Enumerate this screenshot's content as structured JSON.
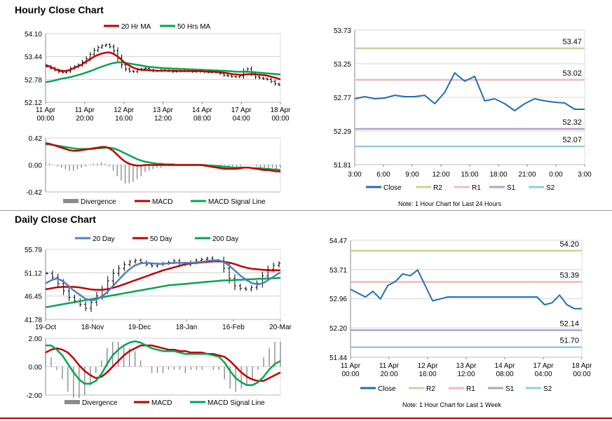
{
  "sections": {
    "hourly_title": "Hourly Close Chart",
    "daily_title": "Daily Close Chart",
    "hourly_note": "Note: 1 Hour Chart for Last 24 Hours",
    "daily_note": "Note: 1 Hour Chart for Last 1 Week"
  },
  "colors": {
    "red": "#c00000",
    "green": "#00a651",
    "blue": "#4f81bd",
    "grey": "#8c8c8c",
    "black": "#000000",
    "close": "#1f6fb2",
    "r2": "#c4d79b",
    "r1": "#f2b8b8",
    "s1": "#b2a1c7",
    "s2": "#92cddc"
  },
  "chart_data": [
    {
      "id": "hourly-price",
      "type": "line",
      "legend": [
        "20 Hr MA",
        "50 Hrs MA"
      ],
      "x_ticks": [
        "11 Apr\n00:00",
        "11 Apr\n20:00",
        "12 Apr\n16:00",
        "13 Apr\n12:00",
        "14 Apr\n08:00",
        "17 Apr\n04:00",
        "18 Apr\n00:00"
      ],
      "y_ticks": [
        "54.10",
        "53.44",
        "52.78",
        "52.12"
      ],
      "ylim": [
        52.12,
        54.1
      ],
      "series": [
        {
          "name": "Close",
          "values": [
            53.15,
            53.1,
            53.05,
            53.0,
            52.98,
            53.02,
            53.1,
            53.15,
            53.2,
            53.28,
            53.38,
            53.5,
            53.62,
            53.7,
            53.75,
            53.78,
            53.72,
            53.6,
            53.4,
            53.2,
            53.08,
            53.02,
            53.0,
            53.05,
            53.08,
            53.1,
            53.05,
            53.02,
            53.03,
            53.05,
            53.04,
            53.02,
            53.0,
            53.01,
            53.02,
            53.03,
            53.02,
            53.0,
            53.01,
            53.0,
            52.99,
            52.98,
            52.99,
            52.98,
            52.95,
            52.9,
            52.88,
            52.86,
            52.85,
            52.88,
            53.02,
            53.08,
            52.95,
            52.85,
            52.82,
            52.8,
            52.78,
            52.72,
            52.65,
            52.62
          ]
        },
        {
          "name": "20 Hr MA",
          "values": [
            53.2,
            53.15,
            53.1,
            53.05,
            53.03,
            53.02,
            53.05,
            53.1,
            53.15,
            53.2,
            53.28,
            53.35,
            53.42,
            53.48,
            53.52,
            53.55,
            53.56,
            53.52,
            53.45,
            53.35,
            53.25,
            53.18,
            53.12,
            53.08,
            53.06,
            53.05,
            53.05,
            53.04,
            53.03,
            53.03,
            53.03,
            53.03,
            53.03,
            53.03,
            53.02,
            53.02,
            53.02,
            53.02,
            53.02,
            53.02,
            53.01,
            53.0,
            53.0,
            52.99,
            52.98,
            52.97,
            52.95,
            52.93,
            52.92,
            52.91,
            52.92,
            52.93,
            52.93,
            52.92,
            52.91,
            52.9,
            52.88,
            52.85,
            52.82,
            52.78
          ]
        },
        {
          "name": "50 Hrs MA",
          "values": [
            52.7,
            52.72,
            52.74,
            52.77,
            52.8,
            52.82,
            52.84,
            52.87,
            52.9,
            52.93,
            52.97,
            53.01,
            53.05,
            53.1,
            53.14,
            53.18,
            53.22,
            53.25,
            53.27,
            53.27,
            53.26,
            53.24,
            53.22,
            53.2,
            53.18,
            53.16,
            53.14,
            53.13,
            53.12,
            53.11,
            53.1,
            53.1,
            53.09,
            53.09,
            53.08,
            53.08,
            53.07,
            53.07,
            53.06,
            53.06,
            53.05,
            53.05,
            53.04,
            53.04,
            53.03,
            53.03,
            53.02,
            53.01,
            53.0,
            53.0,
            53.0,
            53.0,
            52.99,
            52.98,
            52.97,
            52.96,
            52.95,
            52.94,
            52.93,
            52.92
          ]
        }
      ]
    },
    {
      "id": "hourly-macd",
      "type": "line",
      "legend": [
        "Divergence",
        "MACD",
        "MACD Signal Line"
      ],
      "y_ticks": [
        "0.42",
        "0.00",
        "-0.42"
      ],
      "ylim": [
        -0.42,
        0.42
      ],
      "series": [
        {
          "name": "MACD",
          "values": [
            0.34,
            0.33,
            0.31,
            0.29,
            0.27,
            0.25,
            0.23,
            0.22,
            0.22,
            0.23,
            0.24,
            0.25,
            0.26,
            0.27,
            0.28,
            0.28,
            0.26,
            0.22,
            0.16,
            0.1,
            0.05,
            0.02,
            0.0,
            -0.01,
            -0.01,
            0.0,
            0.0,
            0.0,
            0.0,
            0.0,
            0.0,
            0.0,
            0.0,
            0.0,
            0.0,
            0.0,
            0.0,
            0.0,
            0.0,
            0.0,
            -0.01,
            -0.02,
            -0.03,
            -0.04,
            -0.05,
            -0.06,
            -0.06,
            -0.06,
            -0.06,
            -0.05,
            -0.04,
            -0.04,
            -0.05,
            -0.06,
            -0.07,
            -0.08,
            -0.08,
            -0.09,
            -0.1,
            -0.1
          ]
        },
        {
          "name": "MACD Signal Line",
          "values": [
            0.32,
            0.32,
            0.31,
            0.3,
            0.29,
            0.28,
            0.27,
            0.26,
            0.25,
            0.25,
            0.25,
            0.25,
            0.25,
            0.26,
            0.26,
            0.27,
            0.27,
            0.26,
            0.24,
            0.21,
            0.18,
            0.15,
            0.12,
            0.09,
            0.07,
            0.05,
            0.04,
            0.03,
            0.02,
            0.02,
            0.01,
            0.01,
            0.01,
            0.0,
            0.0,
            0.0,
            0.0,
            0.0,
            0.0,
            0.0,
            0.0,
            -0.01,
            -0.01,
            -0.02,
            -0.02,
            -0.03,
            -0.03,
            -0.04,
            -0.04,
            -0.04,
            -0.04,
            -0.04,
            -0.05,
            -0.05,
            -0.05,
            -0.06,
            -0.06,
            -0.07,
            -0.07,
            -0.08
          ]
        }
      ]
    },
    {
      "id": "hourly-pivots",
      "type": "line",
      "legend": [
        "Close",
        "R2",
        "R1",
        "S1",
        "S2"
      ],
      "x_ticks": [
        "3:00",
        "6:00",
        "9:00",
        "12:00",
        "15:00",
        "18:00",
        "21:00",
        "0:00",
        "3:00"
      ],
      "y_ticks": [
        "53.73",
        "53.25",
        "52.77",
        "52.29",
        "51.81"
      ],
      "ylim": [
        51.81,
        53.73
      ],
      "levels": [
        {
          "name": "R2",
          "value": 53.47,
          "label": "53.47"
        },
        {
          "name": "R1",
          "value": 53.02,
          "label": "53.02"
        },
        {
          "name": "S1",
          "value": 52.32,
          "label": "52.32"
        },
        {
          "name": "S2",
          "value": 52.07,
          "label": "52.07"
        }
      ],
      "series": [
        {
          "name": "Close",
          "values": [
            52.75,
            52.78,
            52.75,
            52.76,
            52.8,
            52.78,
            52.78,
            52.8,
            52.68,
            52.84,
            53.12,
            53.0,
            53.07,
            52.72,
            52.75,
            52.68,
            52.58,
            52.68,
            52.75,
            52.72,
            52.7,
            52.69,
            52.6,
            52.6
          ]
        }
      ]
    },
    {
      "id": "daily-price",
      "type": "line",
      "legend": [
        "20 Day",
        "50 Day",
        "200 Day"
      ],
      "x_ticks": [
        "19-Oct",
        "18-Nov",
        "19-Dec",
        "18-Jan",
        "16-Feb",
        "20-Mar"
      ],
      "y_ticks": [
        "55.79",
        "51.12",
        "46.45",
        "41.78"
      ],
      "ylim": [
        41.78,
        55.79
      ],
      "series": [
        {
          "name": "Close",
          "values": [
            51.0,
            50.2,
            49.0,
            47.5,
            46.2,
            45.5,
            44.8,
            44.0,
            45.2,
            46.5,
            47.8,
            49.5,
            51.0,
            52.0,
            52.8,
            53.3,
            53.6,
            53.2,
            52.8,
            52.5,
            52.8,
            53.0,
            53.2,
            53.5,
            53.0,
            52.8,
            53.2,
            53.6,
            53.8,
            54.0,
            53.6,
            53.5,
            52.0,
            50.0,
            48.5,
            48.0,
            47.8,
            48.2,
            49.0,
            50.5,
            51.8,
            52.6,
            53.0
          ]
        },
        {
          "name": "20 Day",
          "values": [
            49.0,
            49.6,
            50.0,
            49.5,
            48.6,
            47.6,
            46.8,
            46.0,
            45.6,
            45.7,
            46.3,
            47.2,
            48.4,
            49.6,
            50.8,
            51.8,
            52.6,
            53.0,
            53.1,
            53.0,
            52.9,
            52.9,
            53.0,
            53.1,
            53.1,
            53.1,
            53.1,
            53.2,
            53.3,
            53.5,
            53.6,
            53.6,
            53.2,
            52.4,
            51.4,
            50.4,
            49.6,
            49.0,
            48.8,
            49.1,
            49.8,
            50.5,
            51.2
          ]
        },
        {
          "name": "50 Day",
          "values": [
            47.8,
            48.0,
            48.2,
            48.3,
            48.3,
            48.3,
            48.2,
            48.0,
            47.8,
            47.7,
            47.7,
            47.8,
            48.1,
            48.4,
            48.8,
            49.2,
            49.6,
            50.0,
            50.4,
            50.8,
            51.2,
            51.6,
            51.9,
            52.2,
            52.5,
            52.8,
            53.0,
            53.1,
            53.2,
            53.3,
            53.4,
            53.4,
            53.3,
            53.1,
            52.8,
            52.4,
            52.1,
            51.9,
            51.8,
            51.7,
            51.6,
            51.6,
            51.6
          ]
        },
        {
          "name": "200 Day",
          "values": [
            44.2,
            44.4,
            44.6,
            44.8,
            45.0,
            45.2,
            45.4,
            45.6,
            45.8,
            46.0,
            46.2,
            46.4,
            46.6,
            46.8,
            47.0,
            47.2,
            47.4,
            47.6,
            47.8,
            48.0,
            48.2,
            48.4,
            48.6,
            48.7,
            48.8,
            48.9,
            49.0,
            49.1,
            49.2,
            49.3,
            49.4,
            49.5,
            49.6,
            49.6,
            49.7,
            49.7,
            49.8,
            49.8,
            49.9,
            49.9,
            50.0,
            50.0,
            50.1
          ]
        }
      ]
    },
    {
      "id": "daily-macd",
      "type": "line",
      "legend": [
        "Divergence",
        "MACD",
        "MACD Signal Line"
      ],
      "y_ticks": [
        "2.00",
        "0.00",
        "-2.00"
      ],
      "ylim": [
        -2.0,
        2.0
      ],
      "series": [
        {
          "name": "MACD",
          "values": [
            1.5,
            1.5,
            1.2,
            0.8,
            0.2,
            -0.4,
            -0.9,
            -1.2,
            -1.2,
            -1.0,
            -0.5,
            0.2,
            0.8,
            1.2,
            1.5,
            1.7,
            1.8,
            1.7,
            1.5,
            1.3,
            1.2,
            1.1,
            1.1,
            1.1,
            1.0,
            0.9,
            0.9,
            0.9,
            0.9,
            0.9,
            0.8,
            0.7,
            0.3,
            -0.3,
            -0.8,
            -1.1,
            -1.3,
            -1.3,
            -1.1,
            -0.7,
            -0.2,
            0.2,
            0.4
          ]
        },
        {
          "name": "MACD Signal Line",
          "values": [
            1.0,
            1.2,
            1.3,
            1.2,
            1.0,
            0.6,
            0.1,
            -0.3,
            -0.6,
            -0.8,
            -0.7,
            -0.4,
            0.0,
            0.4,
            0.8,
            1.1,
            1.3,
            1.5,
            1.5,
            1.5,
            1.4,
            1.3,
            1.2,
            1.2,
            1.1,
            1.1,
            1.0,
            1.0,
            1.0,
            0.9,
            0.9,
            0.8,
            0.7,
            0.4,
            0.0,
            -0.4,
            -0.7,
            -0.9,
            -1.0,
            -1.0,
            -0.8,
            -0.6,
            -0.4
          ]
        }
      ]
    },
    {
      "id": "daily-pivots",
      "type": "line",
      "legend": [
        "Close",
        "R2",
        "R1",
        "S1",
        "S2"
      ],
      "x_ticks": [
        "11 Apr\n00:00",
        "11 Apr\n20:00",
        "12 Apr\n16:00",
        "13 Apr\n12:00",
        "14 Apr\n08:00",
        "17 Apr\n04:00",
        "18 Apr\n00:00"
      ],
      "y_ticks": [
        "54.47",
        "53.71",
        "52.96",
        "52.20",
        "51.44"
      ],
      "ylim": [
        51.44,
        54.47
      ],
      "levels": [
        {
          "name": "R2",
          "value": 54.2,
          "label": "54.20"
        },
        {
          "name": "R1",
          "value": 53.39,
          "label": "53.39"
        },
        {
          "name": "S1",
          "value": 52.14,
          "label": "52.14"
        },
        {
          "name": "S2",
          "value": 51.7,
          "label": "51.70"
        }
      ],
      "series": [
        {
          "name": "Close",
          "values": [
            53.2,
            53.1,
            53.0,
            53.15,
            52.95,
            53.3,
            53.4,
            53.6,
            53.55,
            53.7,
            53.3,
            52.9,
            52.95,
            53.0,
            53.0,
            53.0,
            53.0,
            53.0,
            53.0,
            53.0,
            53.0,
            53.0,
            53.0,
            53.0,
            53.0,
            53.0,
            52.8,
            52.85,
            53.05,
            52.8,
            52.7,
            52.7
          ]
        }
      ]
    }
  ]
}
